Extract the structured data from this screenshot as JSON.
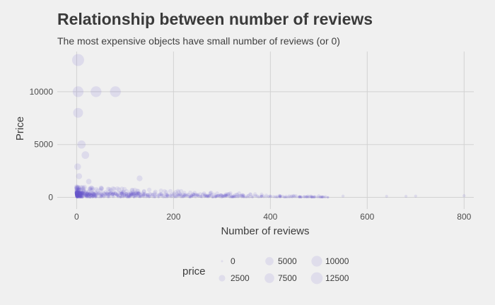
{
  "chart_data": {
    "type": "scatter",
    "title": "Relationship between number of reviews",
    "subtitle": "The most expensive objects have small number of reviews (or 0)",
    "xlabel": "Number of reviews",
    "ylabel": "Price",
    "xlim": [
      -40,
      820
    ],
    "ylim": [
      -1100,
      13800
    ],
    "x_ticks": [
      0,
      200,
      400,
      600,
      800
    ],
    "y_ticks": [
      0,
      5000,
      10000
    ],
    "grid": true,
    "point_color": "#6a5acd",
    "legend": {
      "title": "price",
      "position": "bottom",
      "entries": [
        0,
        2500,
        5000,
        7500,
        10000,
        12500
      ]
    },
    "size_range": [
      0,
      13000
    ],
    "points": [
      {
        "x": 3,
        "y": 13000
      },
      {
        "x": 3,
        "y": 10000
      },
      {
        "x": 40,
        "y": 10000
      },
      {
        "x": 80,
        "y": 10000
      },
      {
        "x": 3,
        "y": 8000
      },
      {
        "x": 10,
        "y": 5000
      },
      {
        "x": 18,
        "y": 4000
      },
      {
        "x": 2,
        "y": 2900
      },
      {
        "x": 5,
        "y": 2000
      },
      {
        "x": 25,
        "y": 1500
      },
      {
        "x": 130,
        "y": 1800
      },
      {
        "x": 0,
        "y": 1000
      },
      {
        "x": 8,
        "y": 700
      },
      {
        "x": 60,
        "y": 500
      },
      {
        "x": 120,
        "y": 350
      },
      {
        "x": 200,
        "y": 250
      },
      {
        "x": 300,
        "y": 200
      },
      {
        "x": 420,
        "y": 150
      },
      {
        "x": 500,
        "y": 150
      },
      {
        "x": 550,
        "y": 120
      },
      {
        "x": 640,
        "y": 100
      },
      {
        "x": 680,
        "y": 100
      },
      {
        "x": 700,
        "y": 120
      },
      {
        "x": 800,
        "y": 150
      }
    ]
  }
}
